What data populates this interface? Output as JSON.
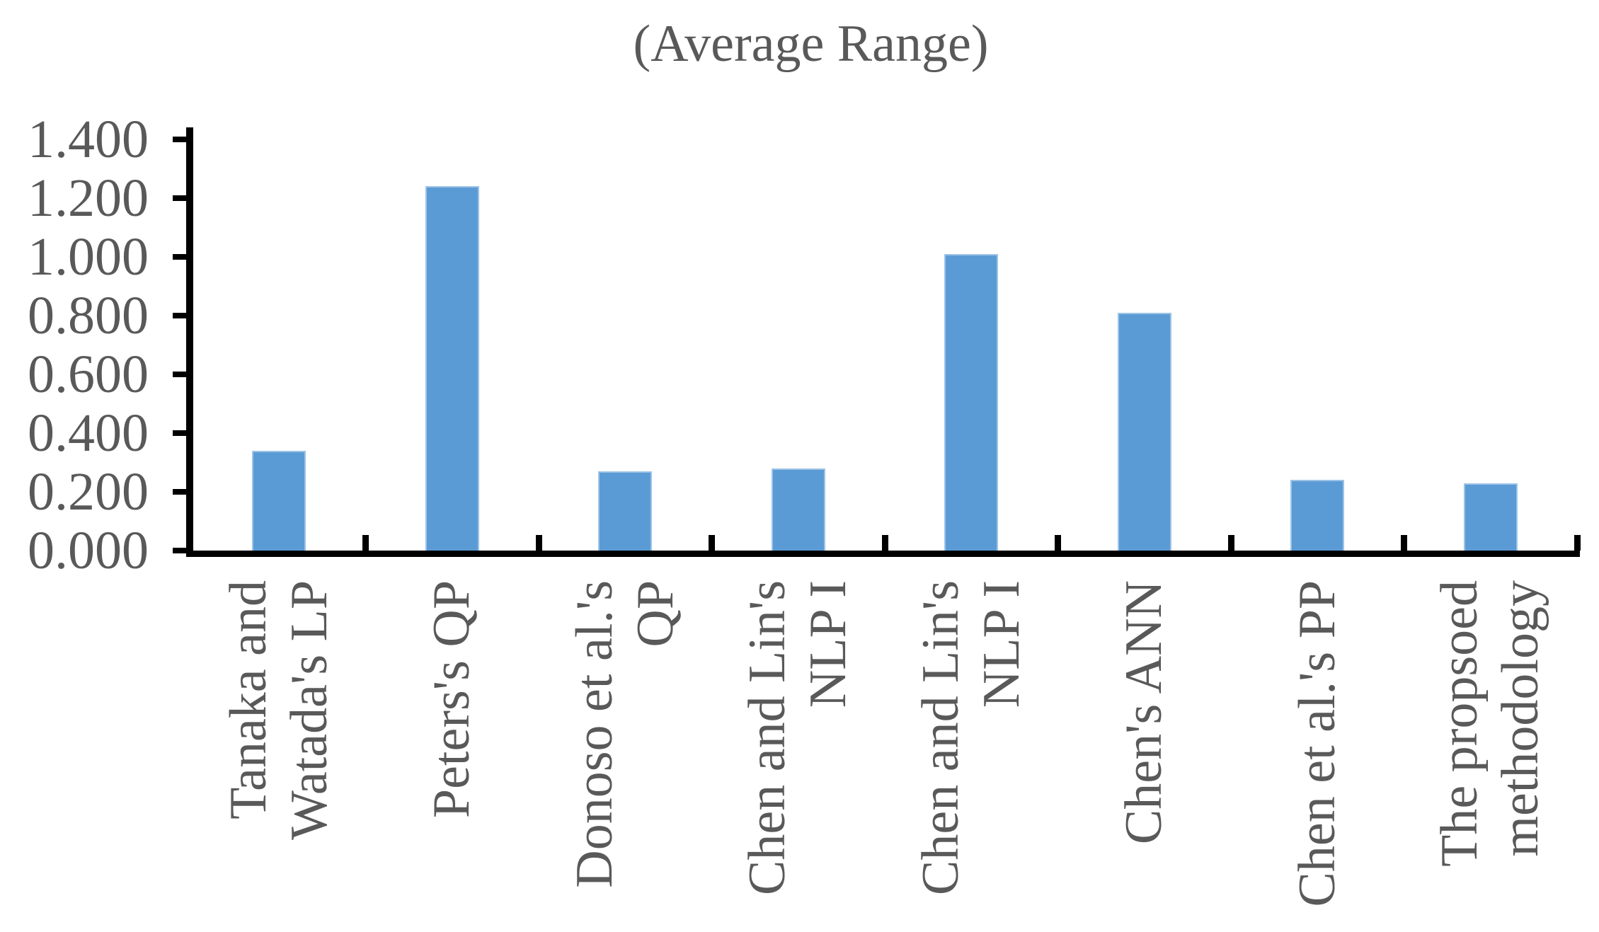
{
  "title": "(Average Range)",
  "colors": {
    "bar_fill": "#5B9BD5",
    "bar_border": "#9DC3E6",
    "text": "#595959",
    "axis": "#000000"
  },
  "chart_data": {
    "type": "bar",
    "title": "(Average Range)",
    "categories": [
      "Tanaka and\nWatada's LP",
      "Peters's QP",
      "Donoso et al.'s\nQP",
      "Chen and Lin's\nNLP I",
      "Chen and Lin's\nNLP I",
      "Chen's ANN",
      "Chen et al.'s PP",
      "The propsoed\nmethodology"
    ],
    "values": [
      0.34,
      1.24,
      0.27,
      0.28,
      1.01,
      0.81,
      0.24,
      0.23
    ],
    "xlabel": "",
    "ylabel": "",
    "ylim": [
      0,
      1.4
    ],
    "ytick_step": 0.2,
    "ytick_labels": [
      "0.000",
      "0.200",
      "0.400",
      "0.600",
      "0.800",
      "1.000",
      "1.200",
      "1.400"
    ],
    "grid": false,
    "legend_position": "none",
    "bar_color": "#5B9BD5"
  }
}
